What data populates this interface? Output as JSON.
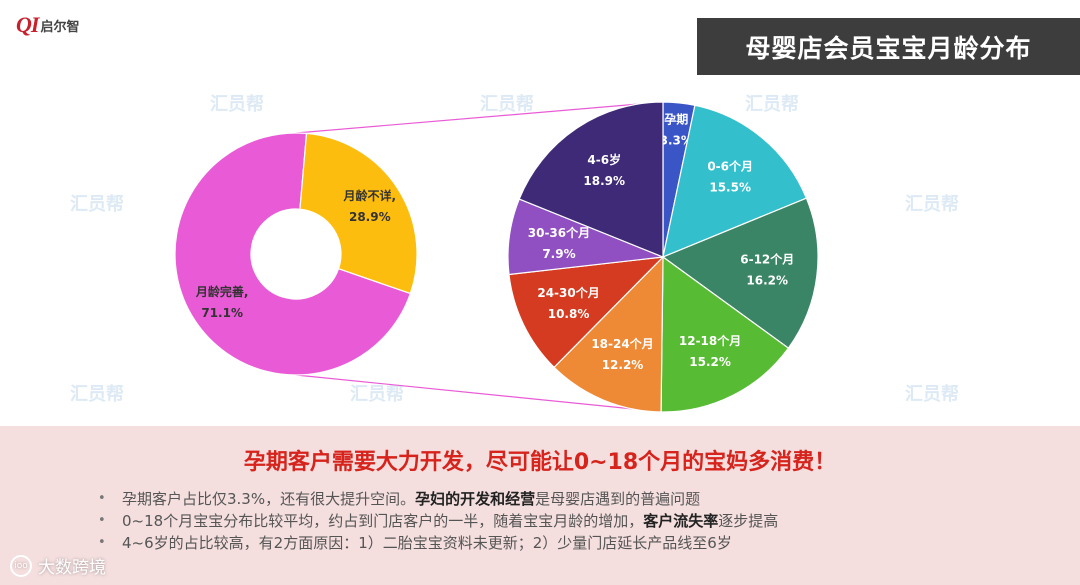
{
  "header": {
    "logo_mark": "QI",
    "logo_text": "启尔智",
    "title": "母婴店会员宝宝月龄分布"
  },
  "watermark_text": "汇员帮",
  "chart_data": [
    {
      "type": "pie",
      "variant": "donut",
      "title": "",
      "slices": [
        {
          "label": "月龄完善,",
          "value": 71.1,
          "value_label": "71.1%",
          "color": "#e95bd6"
        },
        {
          "label": "月龄不详,",
          "value": 28.9,
          "value_label": "28.9%",
          "color": "#fdbd0e"
        }
      ]
    },
    {
      "type": "pie",
      "title": "",
      "slices": [
        {
          "label": "孕期",
          "value": 3.3,
          "value_label": "3.3%",
          "color": "#3a55c6"
        },
        {
          "label": "0-6个月",
          "value": 15.5,
          "value_label": "15.5%",
          "color": "#33bfcb"
        },
        {
          "label": "6-12个月",
          "value": 16.2,
          "value_label": "16.2%",
          "color": "#3a8565"
        },
        {
          "label": "12-18个月",
          "value": 15.2,
          "value_label": "15.2%",
          "color": "#58bb34"
        },
        {
          "label": "18-24个月",
          "value": 12.2,
          "value_label": "12.2%",
          "color": "#ee8a35"
        },
        {
          "label": "24-30个月",
          "value": 10.8,
          "value_label": "10.8%",
          "color": "#d43b20"
        },
        {
          "label": "30-36个月",
          "value": 7.9,
          "value_label": "7.9%",
          "color": "#9050c2"
        },
        {
          "label": "4-6岁",
          "value": 18.9,
          "value_label": "18.9%",
          "color": "#3f2a78"
        }
      ]
    }
  ],
  "summary": {
    "headline": "孕期客户需要大力开发，尽可能让0~18个月的宝妈多消费！",
    "bullet_marker": "•",
    "bullets": [
      {
        "parts": [
          {
            "text": "孕期客户占比仅3.3%，还有很大提升空间。",
            "bold": false
          },
          {
            "text": "孕妇的开发和经营",
            "bold": true
          },
          {
            "text": "是母婴店遇到的普遍问题",
            "bold": false
          }
        ]
      },
      {
        "parts": [
          {
            "text": "0~18个月宝宝分布比较平均，约占到门店客户的一半，随着宝宝月龄的增加，",
            "bold": false
          },
          {
            "text": "客户流失率",
            "bold": true
          },
          {
            "text": "逐步提高",
            "bold": false
          }
        ]
      },
      {
        "parts": [
          {
            "text": "4~6岁的占比较高，有2方面原因：1）二胎宝宝资料未更新；2）少量门店延长产品线至6岁",
            "bold": false
          }
        ]
      }
    ]
  },
  "footer": {
    "brand_mark": "ioo",
    "brand_text": "大数跨境"
  }
}
